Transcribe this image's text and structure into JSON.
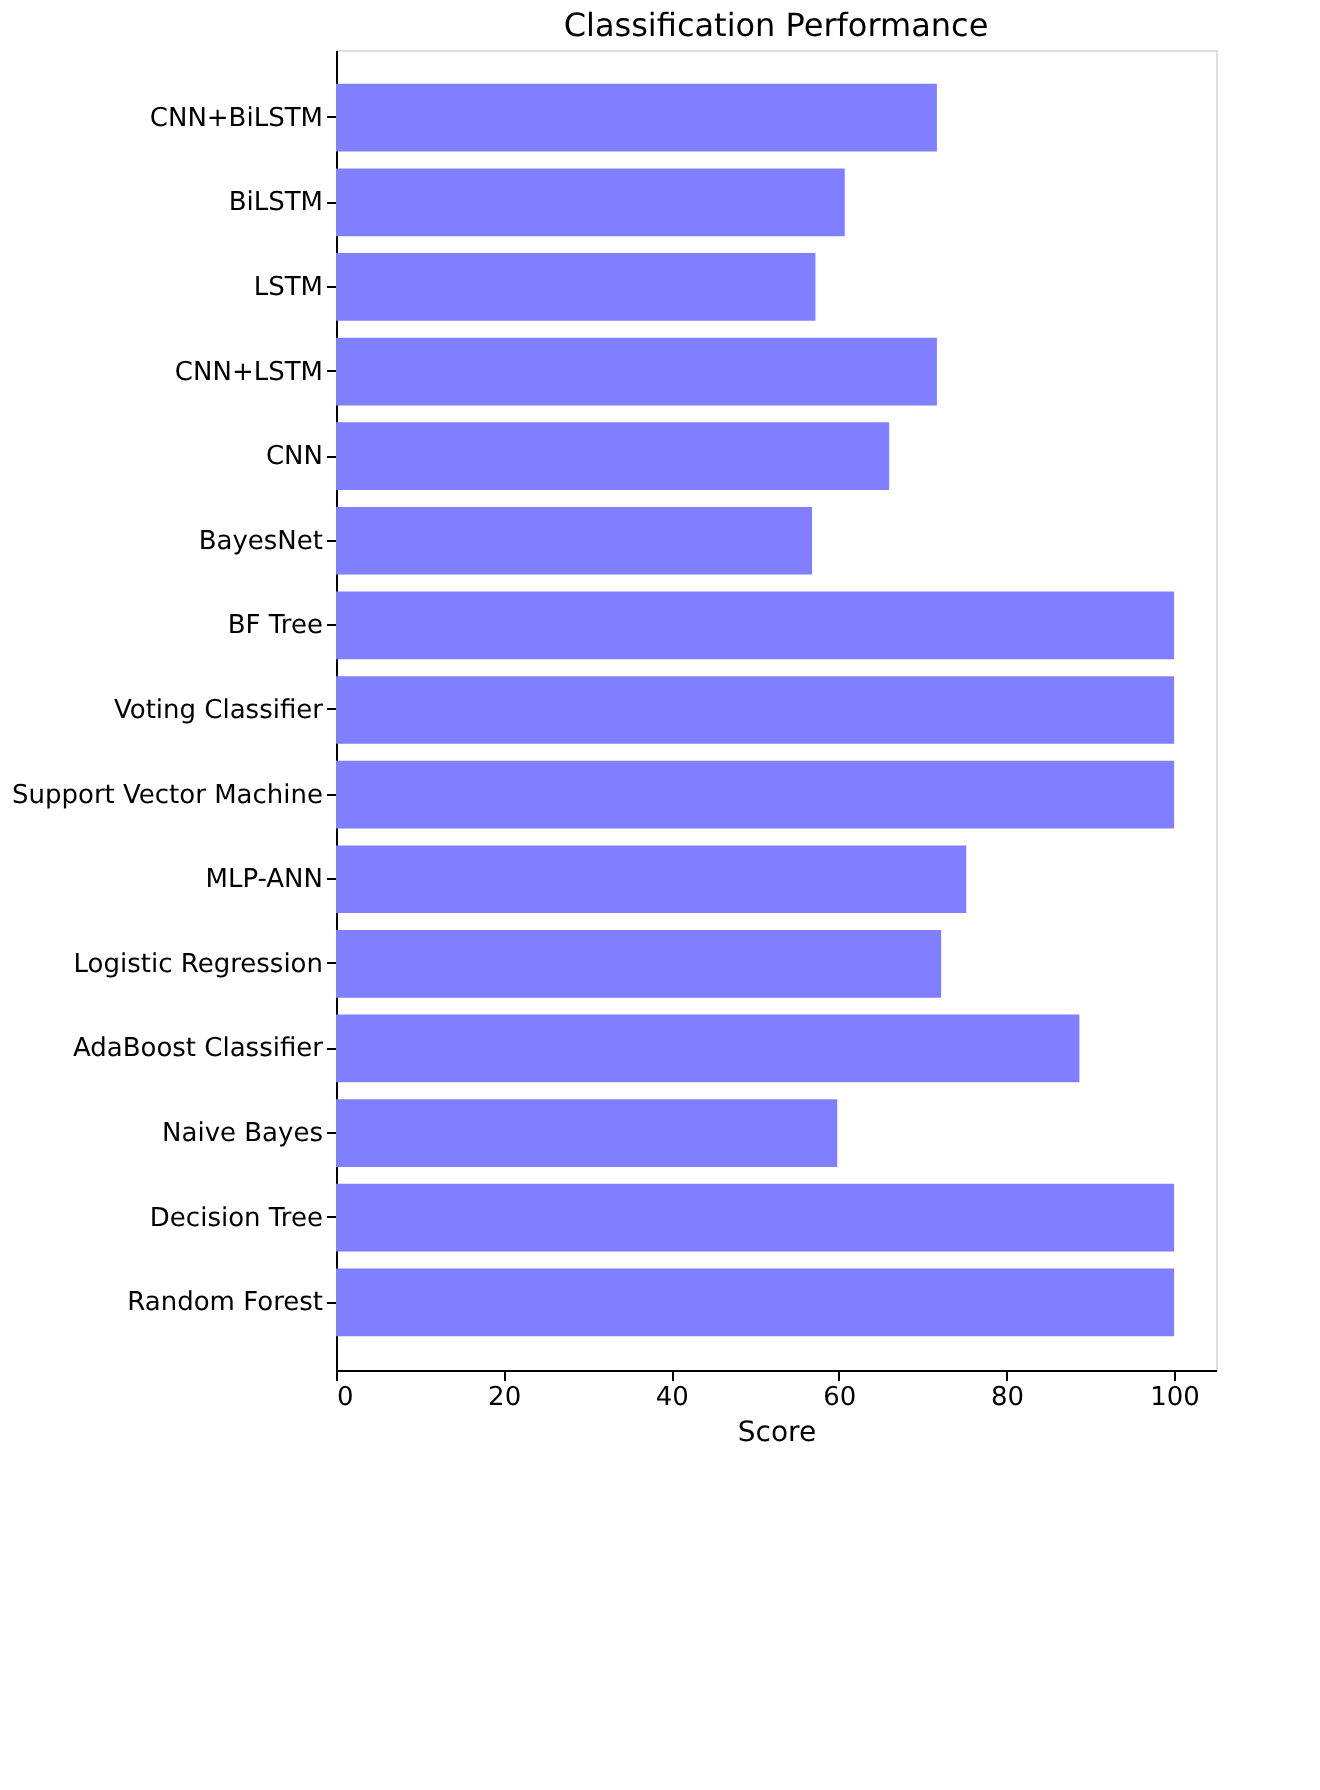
{
  "chart_data": {
    "type": "bar",
    "orientation": "horizontal",
    "title": "Classification Performance",
    "xlabel": "Score",
    "categories": [
      "CNN+BiLSTM",
      "BiLSTM",
      "LSTM",
      "CNN+LSTM",
      "CNN",
      "BayesNet",
      "BF Tree",
      "Voting Classifier",
      "Support Vector Machine",
      "MLP-ANN",
      "Logistic Regression",
      "AdaBoost Classifier",
      "Naive Bayes",
      "Decision Tree",
      "Random Forest"
    ],
    "values": [
      71.7,
      60.7,
      57.2,
      71.7,
      66,
      56.8,
      100,
      100,
      100,
      75.2,
      72.2,
      88.7,
      59.8,
      100,
      100
    ],
    "color": "#7f7fff",
    "xlim": [
      0,
      105
    ],
    "xticks": [
      0,
      20,
      40,
      60,
      80,
      100
    ],
    "grid": false
  }
}
